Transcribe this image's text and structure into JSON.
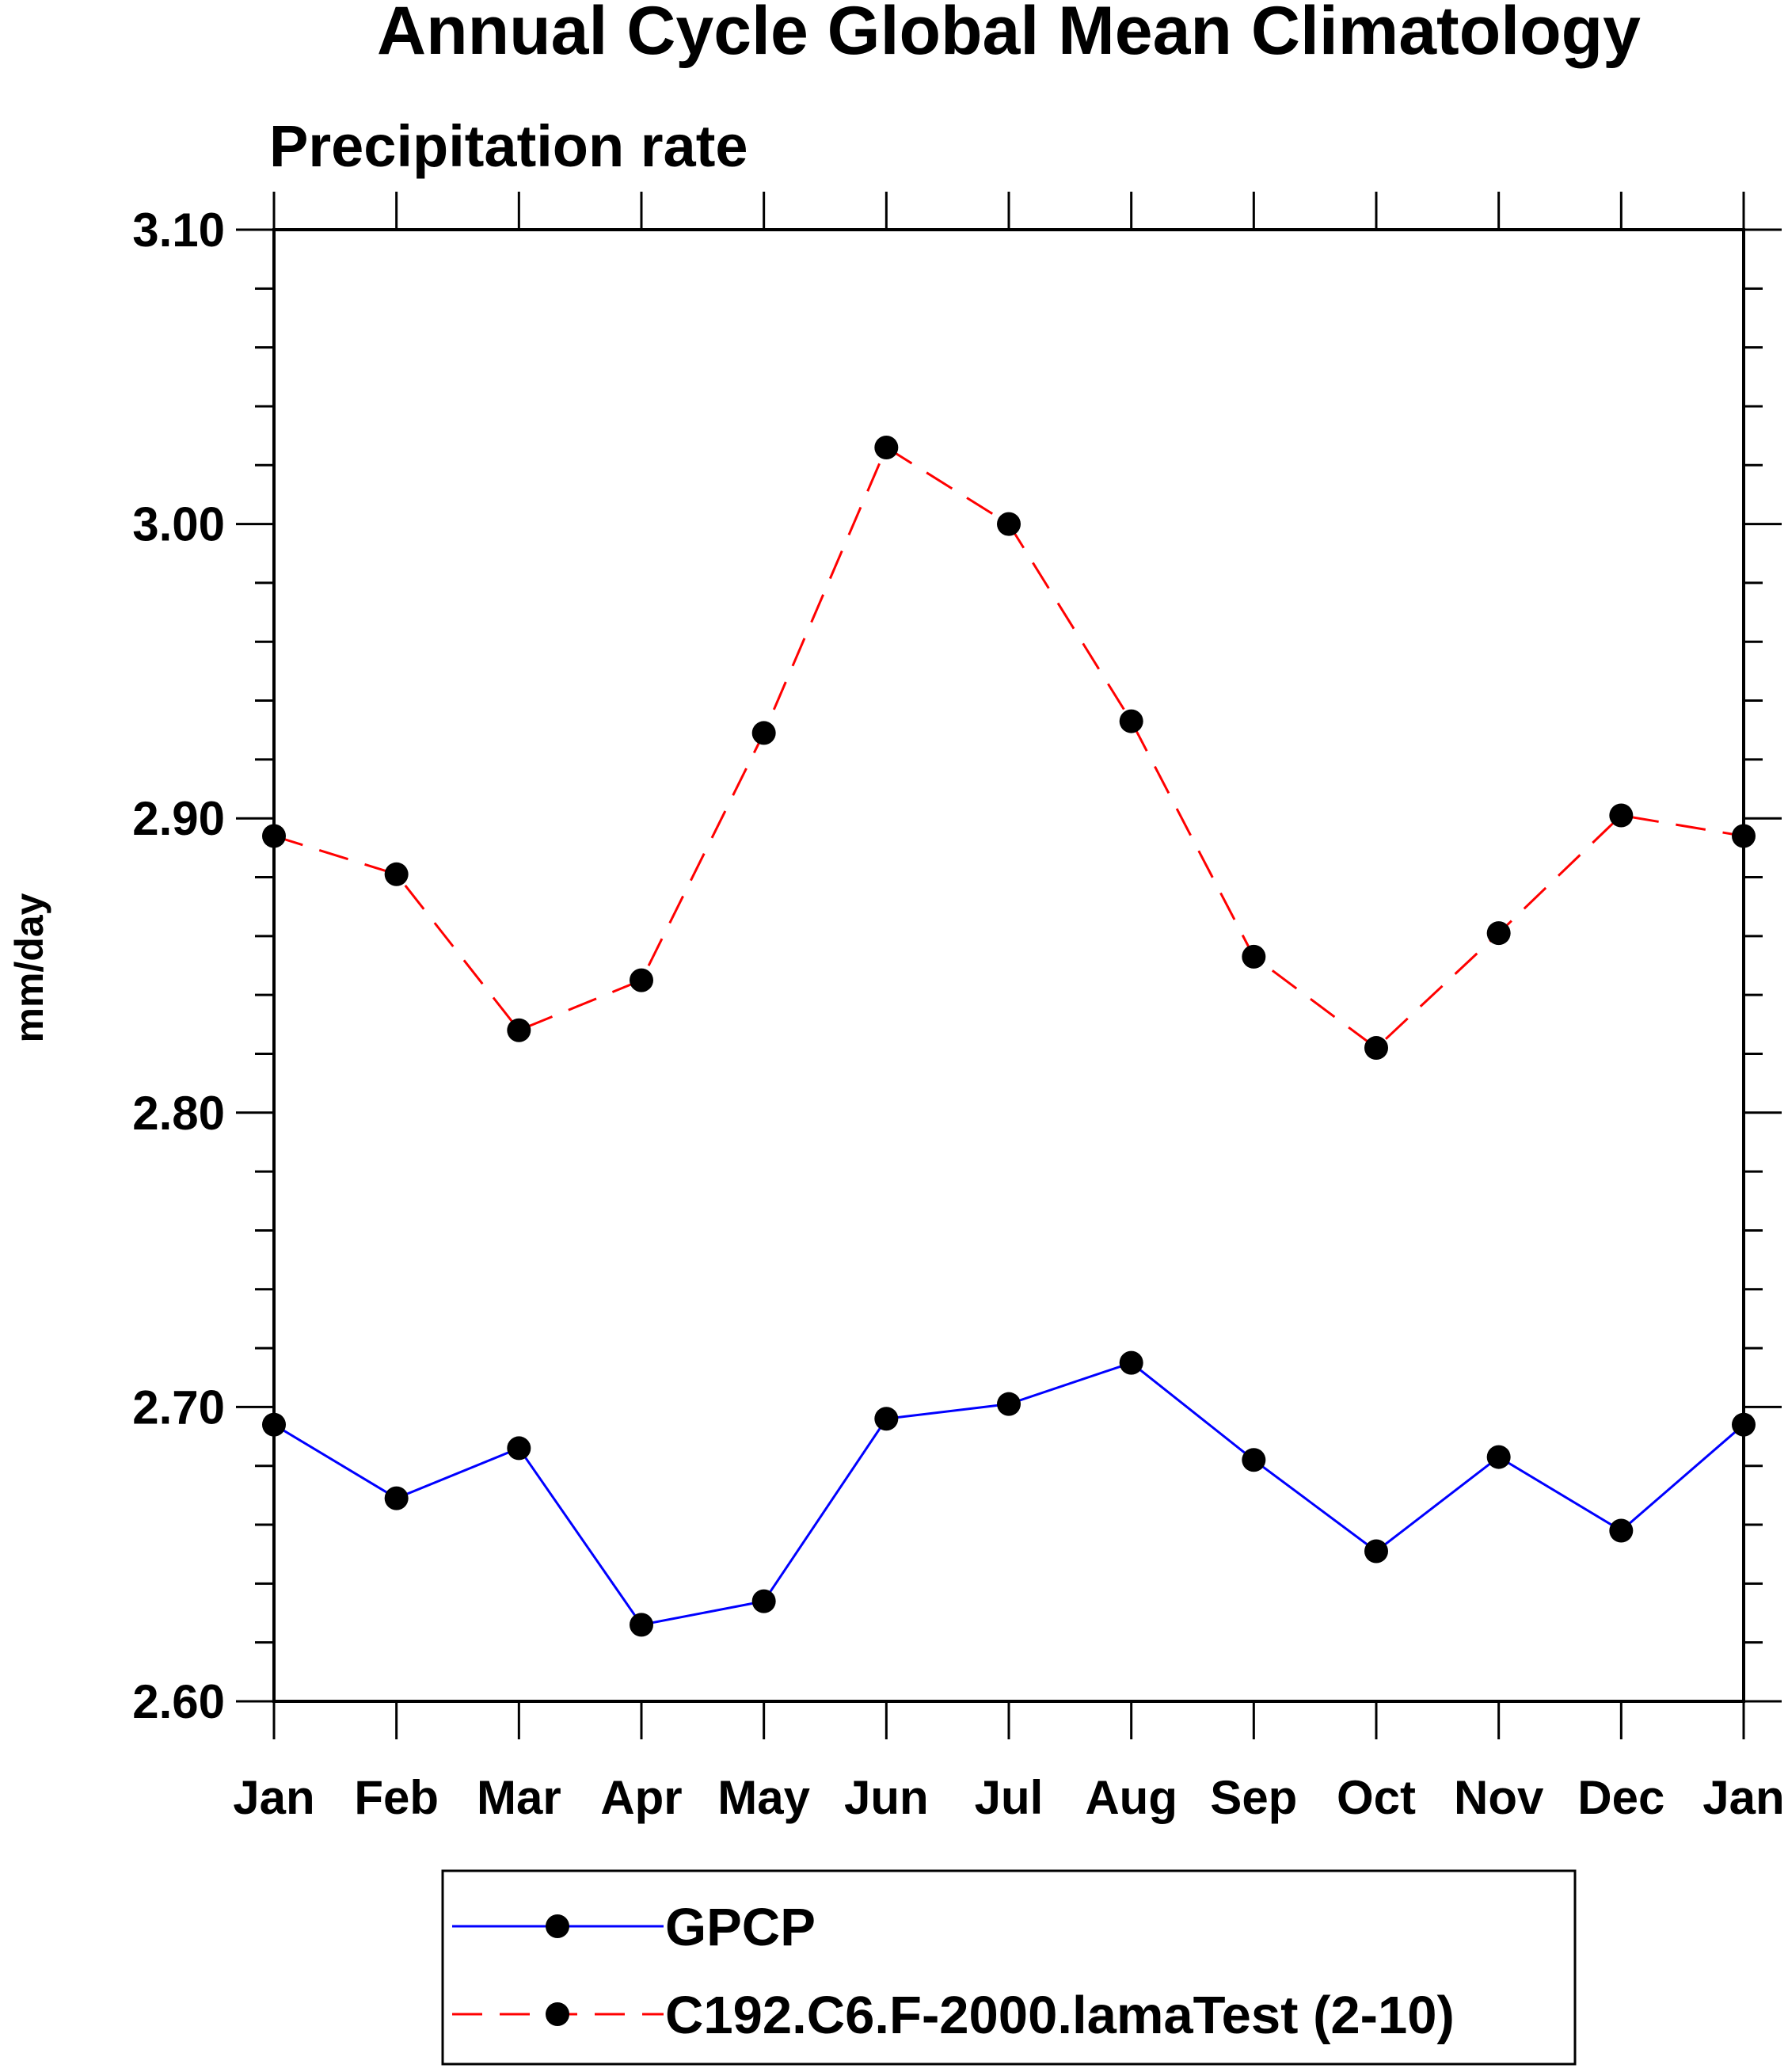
{
  "chart_data": {
    "type": "line",
    "title": "Annual Cycle Global Mean Climatology",
    "subtitle": "Precipitation rate",
    "xlabel": "",
    "ylabel": "mm/day",
    "categories": [
      "Jan",
      "Feb",
      "Mar",
      "Apr",
      "May",
      "Jun",
      "Jul",
      "Aug",
      "Sep",
      "Oct",
      "Nov",
      "Dec",
      "Jan"
    ],
    "ylim": [
      2.6,
      3.1
    ],
    "yticks": [
      "2.60",
      "2.70",
      "2.80",
      "2.90",
      "3.00",
      "3.10"
    ],
    "grid": false,
    "legend_position": "bottom",
    "series": [
      {
        "name": "GPCP",
        "color": "#0000ff",
        "line_style": "solid",
        "marker": "filled-circle",
        "values": [
          2.694,
          2.669,
          2.686,
          2.626,
          2.634,
          2.696,
          2.701,
          2.715,
          2.682,
          2.651,
          2.683,
          2.658,
          2.694
        ]
      },
      {
        "name": "C192.C6.F-2000.lamaTest (2-10)",
        "color": "#ff0000",
        "line_style": "dashed",
        "marker": "filled-circle",
        "values": [
          2.894,
          2.881,
          2.828,
          2.845,
          2.929,
          3.026,
          3.0,
          2.933,
          2.853,
          2.822,
          2.861,
          2.901,
          2.894
        ]
      }
    ]
  }
}
